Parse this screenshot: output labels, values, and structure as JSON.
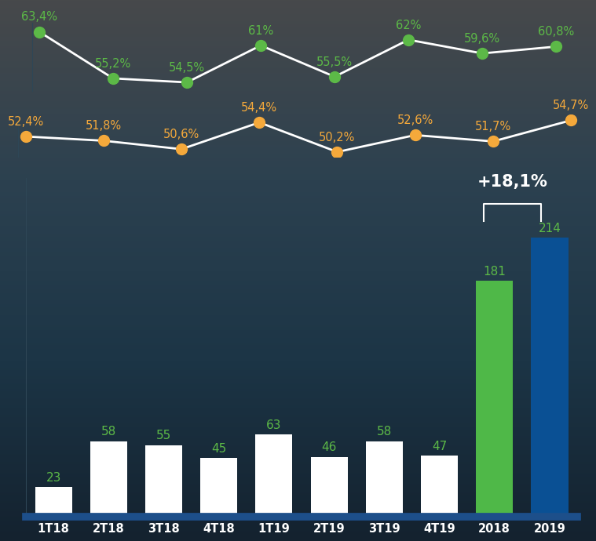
{
  "chart_data": [
    {
      "type": "line",
      "categories": [
        null,
        null,
        null,
        null,
        null,
        null,
        null,
        null
      ],
      "series": [
        {
          "color": "#5cb947",
          "marker": "o",
          "line_style": "solid",
          "values": [
            63.4,
            55.2,
            54.5,
            61,
            55.5,
            62,
            59.6,
            60.8
          ],
          "value_labels": [
            "63,4%",
            "55,2%",
            "54,5%",
            "61%",
            "55,5%",
            "62%",
            "59,6%",
            "60,8%"
          ]
        }
      ],
      "ylim": [
        53,
        65
      ],
      "yticks": [],
      "data_labels": true,
      "tick_labels": false
    },
    {
      "type": "line",
      "categories": [
        null,
        null,
        null,
        null,
        null,
        null,
        null,
        null
      ],
      "series": [
        {
          "color": "#f5a93b",
          "marker": "o",
          "line_style": "solid",
          "values": [
            52.4,
            51.8,
            50.6,
            54.4,
            50.2,
            52.6,
            51.7,
            54.7
          ],
          "value_labels": [
            "52,4%",
            "51,8%",
            "50,6%",
            "54,4%",
            "50,2%",
            "52,6%",
            "51,7%",
            "54,7%"
          ]
        }
      ],
      "ylim": [
        49.5,
        55.5
      ],
      "yticks": [],
      "data_labels": true,
      "tick_labels": false
    },
    {
      "type": "bar",
      "categories": [
        "1T18",
        "2T18",
        "3T18",
        "4T18",
        "1T19",
        "2T19",
        "3T19",
        "4T19",
        "2018",
        "2019"
      ],
      "values": [
        23,
        58,
        55,
        45,
        63,
        46,
        58,
        47,
        181,
        214
      ],
      "colors": [
        "#ffffff",
        "#ffffff",
        "#ffffff",
        "#ffffff",
        "#ffffff",
        "#ffffff",
        "#ffffff",
        "#ffffff",
        "#4fb848",
        "#0a5094"
      ],
      "ylim": [
        0,
        260
      ],
      "yticks": [],
      "data_labels": true,
      "tick_labels": "x",
      "annotations": [
        "+18,1%"
      ]
    }
  ]
}
